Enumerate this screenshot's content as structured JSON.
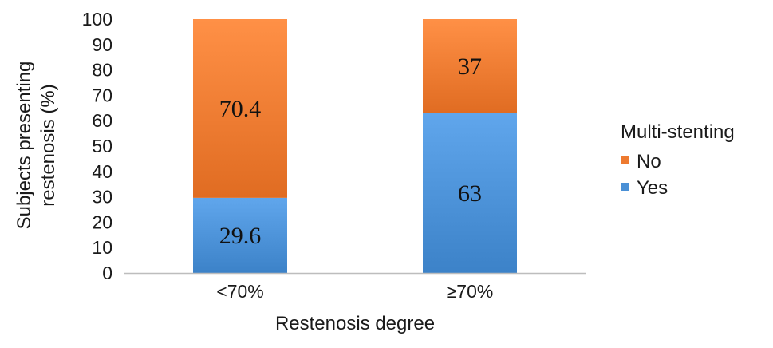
{
  "chart_data": {
    "type": "bar",
    "stacked": true,
    "categories": [
      "<70%",
      "≥70%"
    ],
    "series": [
      {
        "name": "Yes",
        "values": [
          29.6,
          63
        ],
        "color": "#4a90d6"
      },
      {
        "name": "No",
        "values": [
          70.4,
          37
        ],
        "color": "#ee7a30"
      }
    ],
    "data_labels": [
      [
        "29.6",
        "63"
      ],
      [
        "70.4",
        "37"
      ]
    ],
    "xlabel": "Restenosis degree",
    "ylabel": [
      "Subjects presenting",
      "restenosis (%)"
    ],
    "ylim": [
      0,
      100
    ],
    "yticks": [
      0,
      10,
      20,
      30,
      40,
      50,
      60,
      70,
      80,
      90,
      100
    ],
    "grid": false,
    "legend": {
      "title": "Multi-stenting",
      "placement": "right",
      "entries": [
        "No",
        "Yes"
      ]
    }
  }
}
